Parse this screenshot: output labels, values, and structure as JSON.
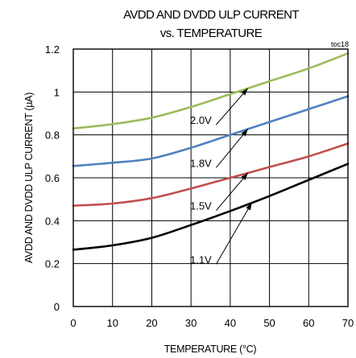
{
  "chart_data": {
    "type": "line",
    "title": "AVDD AND DVDD ULP CURRENT",
    "subtitle": "vs. TEMPERATURE",
    "note": "toc18",
    "xlabel": "TEMPERATURE (°C)",
    "ylabel": "AVDD AND DVDD ULP CURRENT (µA)",
    "xlim": [
      0,
      70
    ],
    "ylim": [
      0,
      1.2
    ],
    "xticks": [
      0,
      10,
      20,
      30,
      40,
      50,
      60,
      70
    ],
    "yticks": [
      0,
      0.2,
      0.4,
      0.6,
      0.8,
      1,
      1.2
    ],
    "xtick_labels": [
      "0",
      "10",
      "20",
      "30",
      "40",
      "50",
      "60",
      "70"
    ],
    "ytick_labels": [
      "0",
      "0.2",
      "0.4",
      "0.6",
      "0.8",
      "1",
      "1.2"
    ],
    "grid": true,
    "x": [
      0,
      10,
      20,
      30,
      40,
      50,
      60,
      70
    ],
    "series": [
      {
        "name": "2.0V",
        "color": "#9bbb59",
        "values": [
          0.83,
          0.85,
          0.88,
          0.93,
          0.99,
          1.05,
          1.11,
          1.18
        ]
      },
      {
        "name": "1.8V",
        "color": "#4f81bd",
        "values": [
          0.655,
          0.67,
          0.69,
          0.74,
          0.8,
          0.86,
          0.92,
          0.98
        ]
      },
      {
        "name": "1.5V",
        "color": "#c0504d",
        "values": [
          0.47,
          0.48,
          0.505,
          0.55,
          0.6,
          0.65,
          0.7,
          0.76
        ]
      },
      {
        "name": "1.1V",
        "color": "#000000",
        "values": [
          0.265,
          0.285,
          0.32,
          0.38,
          0.445,
          0.515,
          0.59,
          0.665
        ]
      }
    ],
    "annotations": [
      {
        "label": "2.0V",
        "target_series": "2.0V",
        "target_x": 44.5,
        "label_x": 36,
        "label_y": 0.87
      },
      {
        "label": "1.8V",
        "target_series": "1.8V",
        "target_x": 44.5,
        "label_x": 36,
        "label_y": 0.67
      },
      {
        "label": "1.5V",
        "target_series": "1.5V",
        "target_x": 44.5,
        "label_x": 36,
        "label_y": 0.47
      },
      {
        "label": "1.1V",
        "target_series": "1.1V",
        "target_x": 45.5,
        "label_x": 36,
        "label_y": 0.22
      }
    ]
  }
}
